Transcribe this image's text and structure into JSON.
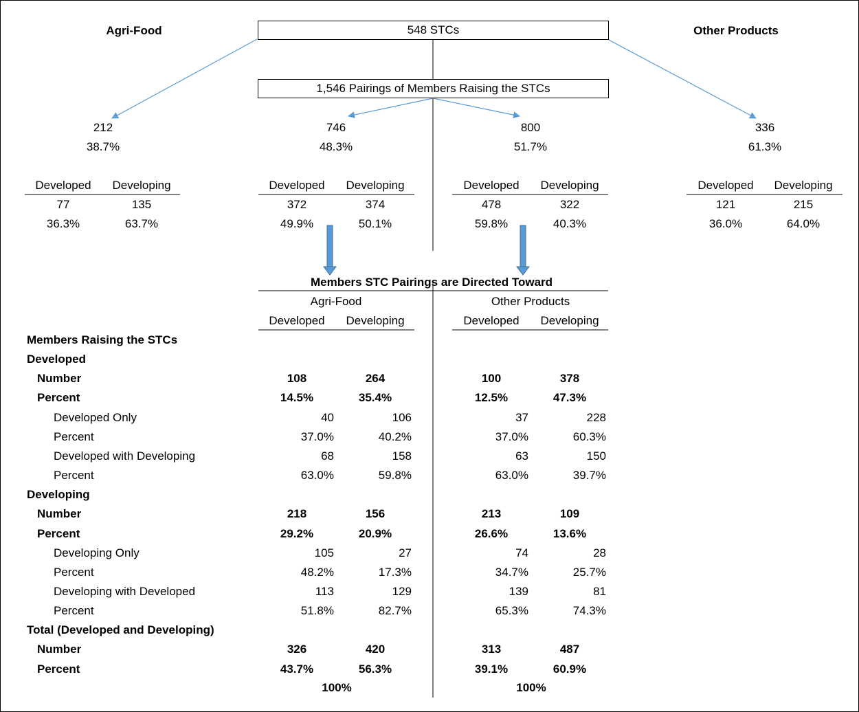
{
  "header": {
    "left_title": "Agri-Food",
    "right_title": "Other Products",
    "top_box": "548 STCs",
    "pairings_box": "1,546 Pairings of Members Raising the STCs"
  },
  "summary": {
    "agri": {
      "count": "212",
      "pct": "38.7%"
    },
    "pair_agri": {
      "count": "746",
      "pct": "48.3%"
    },
    "pair_other": {
      "count": "800",
      "pct": "51.7%"
    },
    "other": {
      "count": "336",
      "pct": "61.3%"
    }
  },
  "labels": {
    "developed": "Developed",
    "developing": "Developing"
  },
  "splits": {
    "agri": {
      "dev": "77",
      "dev_pct": "36.3%",
      "devg": "135",
      "devg_pct": "63.7%"
    },
    "pair_agri": {
      "dev": "372",
      "dev_pct": "49.9%",
      "devg": "374",
      "devg_pct": "50.1%"
    },
    "pair_other": {
      "dev": "478",
      "dev_pct": "59.8%",
      "devg": "322",
      "devg_pct": "40.3%"
    },
    "other": {
      "dev": "121",
      "dev_pct": "36.0%",
      "devg": "215",
      "devg_pct": "64.0%"
    }
  },
  "table": {
    "title": "Members STC Pairings are Directed Toward",
    "group_agri": "Agri-Food",
    "group_other": "Other Products",
    "col_dev": "Developed",
    "col_devg": "Developing",
    "rows": [
      {
        "label": "Members Raising the STCs",
        "bold": true,
        "indent": 0,
        "v": [
          "",
          "",
          "",
          ""
        ]
      },
      {
        "label": "Developed",
        "bold": true,
        "indent": 0,
        "v": [
          "",
          "",
          "",
          ""
        ]
      },
      {
        "label": "Number",
        "bold": true,
        "indent": 1,
        "v": [
          "108",
          "264",
          "100",
          "378"
        ]
      },
      {
        "label": "Percent",
        "bold": true,
        "indent": 1,
        "v": [
          "14.5%",
          "35.4%",
          "12.5%",
          "47.3%"
        ]
      },
      {
        "label": "Developed Only",
        "bold": false,
        "indent": 2,
        "v": [
          "40",
          "106",
          "37",
          "228"
        ]
      },
      {
        "label": "Percent",
        "bold": false,
        "indent": 2,
        "v": [
          "37.0%",
          "40.2%",
          "37.0%",
          "60.3%"
        ]
      },
      {
        "label": "Developed with Developing",
        "bold": false,
        "indent": 2,
        "v": [
          "68",
          "158",
          "63",
          "150"
        ]
      },
      {
        "label": "Percent",
        "bold": false,
        "indent": 2,
        "v": [
          "63.0%",
          "59.8%",
          "63.0%",
          "39.7%"
        ]
      },
      {
        "label": "Developing",
        "bold": true,
        "indent": 0,
        "v": [
          "",
          "",
          "",
          ""
        ]
      },
      {
        "label": "Number",
        "bold": true,
        "indent": 1,
        "v": [
          "218",
          "156",
          "213",
          "109"
        ]
      },
      {
        "label": "Percent",
        "bold": true,
        "indent": 1,
        "v": [
          "29.2%",
          "20.9%",
          "26.6%",
          "13.6%"
        ]
      },
      {
        "label": "Developing Only",
        "bold": false,
        "indent": 2,
        "v": [
          "105",
          "27",
          "74",
          "28"
        ]
      },
      {
        "label": "Percent",
        "bold": false,
        "indent": 2,
        "v": [
          "48.2%",
          "17.3%",
          "34.7%",
          "25.7%"
        ]
      },
      {
        "label": "Developing with Developed",
        "bold": false,
        "indent": 2,
        "v": [
          "113",
          "129",
          "139",
          "81"
        ]
      },
      {
        "label": "Percent",
        "bold": false,
        "indent": 2,
        "v": [
          "51.8%",
          "82.7%",
          "65.3%",
          "74.3%"
        ]
      },
      {
        "label": "Total (Developed and Developing)",
        "bold": true,
        "indent": 0,
        "v": [
          "",
          "",
          "",
          ""
        ]
      },
      {
        "label": "Number",
        "bold": true,
        "indent": 1,
        "v": [
          "326",
          "420",
          "313",
          "487"
        ]
      },
      {
        "label": "Percent",
        "bold": true,
        "indent": 1,
        "v": [
          "43.7%",
          "56.3%",
          "39.1%",
          "60.9%"
        ]
      }
    ],
    "total_agri": "100%",
    "total_other": "100%"
  }
}
